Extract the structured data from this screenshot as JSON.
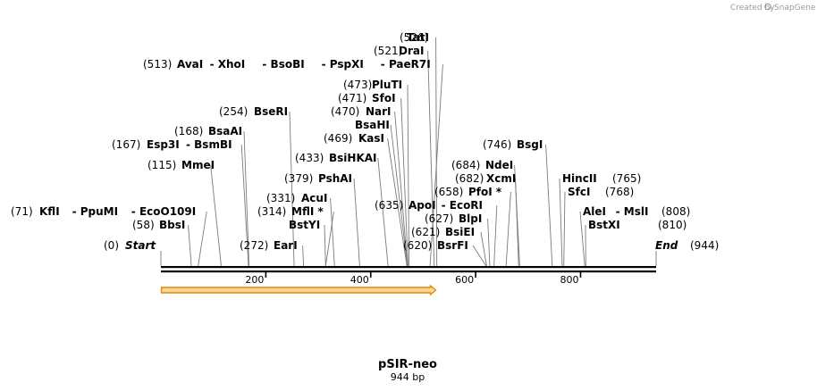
{
  "credit": {
    "text": "Created by",
    "brand": "SnapGene"
  },
  "plasmid": {
    "name": "pSIR-neo",
    "length_label": "944 bp",
    "length": 944
  },
  "axis": {
    "ticks": [
      200,
      400,
      600,
      800
    ]
  },
  "colors": {
    "ruler": "#000000",
    "feature_fill": "#fbd79a",
    "feature_stroke": "#e58a00",
    "leader": "#7a7a7a"
  },
  "feature": {
    "name": "feature-arrow",
    "start": 1,
    "end": 524,
    "direction": "forward"
  },
  "labels": [
    {
      "id": "tati",
      "pos": "(526)",
      "parts": [
        "TatI"
      ],
      "cuts": [
        526
      ]
    },
    {
      "id": "drai",
      "pos": "(521)",
      "parts": [
        "DraI"
      ],
      "cuts": [
        521
      ]
    },
    {
      "id": "avai",
      "pos": "(513)",
      "parts": [
        "AvaI",
        "-  XhoI",
        "-  BsoBI",
        "-  PspXI",
        "-  PaeR7I"
      ],
      "cuts": [
        513
      ]
    },
    {
      "id": "pluti",
      "pos": "(473)",
      "parts": [
        "PluTI"
      ],
      "cuts": [
        473
      ]
    },
    {
      "id": "sfoi",
      "pos": "(471)",
      "parts": [
        "SfoI"
      ],
      "cuts": [
        471
      ]
    },
    {
      "id": "nari",
      "pos": "(470)",
      "parts": [
        "NarI"
      ],
      "cuts": [
        470
      ]
    },
    {
      "id": "bsahi",
      "pos": "",
      "parts": [
        "BsaHI"
      ],
      "cuts": [
        470
      ]
    },
    {
      "id": "kasi",
      "pos": "(469)",
      "parts": [
        "KasI"
      ],
      "cuts": [
        469
      ]
    },
    {
      "id": "bsihkai",
      "pos": "(433)",
      "parts": [
        "BsiHKAI"
      ],
      "cuts": [
        433
      ]
    },
    {
      "id": "pshai",
      "pos": "(379)",
      "parts": [
        "PshAI"
      ],
      "cuts": [
        379
      ]
    },
    {
      "id": "acui",
      "pos": "(331)",
      "parts": [
        "AcuI"
      ],
      "cuts": [
        331
      ]
    },
    {
      "id": "mfli",
      "pos": "(314)",
      "parts": [
        "MflI *"
      ],
      "cuts": [
        314
      ]
    },
    {
      "id": "bstyi",
      "pos": "",
      "parts": [
        "BstYI"
      ],
      "cuts": [
        314
      ]
    },
    {
      "id": "ecori",
      "pos": "(635)",
      "parts": [
        "ApoI",
        "-  EcoRI"
      ],
      "cuts": [
        635
      ]
    },
    {
      "id": "bseri",
      "pos": "(254)",
      "parts": [
        "BseRI"
      ],
      "cuts": [
        254
      ]
    },
    {
      "id": "bsaai",
      "pos": "(168)",
      "parts": [
        "BsaAI"
      ],
      "cuts": [
        168
      ]
    },
    {
      "id": "esp3i",
      "pos": "(167)",
      "parts": [
        "Esp3I",
        "-  BsmBI"
      ],
      "cuts": [
        167
      ]
    },
    {
      "id": "mmei",
      "pos": "(115)",
      "parts": [
        "MmeI"
      ],
      "cuts": [
        115
      ]
    },
    {
      "id": "kfli",
      "pos": "(71)",
      "parts": [
        "KflI",
        "-  PpuMI",
        "-  EcoO109I"
      ],
      "cuts": [
        71
      ]
    },
    {
      "id": "bbsi",
      "pos": "(58)",
      "parts": [
        "BbsI"
      ],
      "cuts": [
        58
      ]
    },
    {
      "id": "start",
      "pos": "(0)",
      "parts": [
        "Start"
      ],
      "cuts": [
        0
      ],
      "italic": true
    },
    {
      "id": "eari",
      "pos": "(272)",
      "parts": [
        "EarI"
      ],
      "cuts": [
        272
      ]
    },
    {
      "id": "bsgi",
      "pos": "(746)",
      "parts": [
        "BsgI"
      ],
      "cuts": [
        746
      ]
    },
    {
      "id": "ndei",
      "pos": "(684)",
      "parts": [
        "NdeI"
      ],
      "cuts": [
        684
      ]
    },
    {
      "id": "xcmi",
      "pos": "(682)",
      "parts": [
        "XcmI"
      ],
      "cuts": [
        682
      ]
    },
    {
      "id": "pfoi",
      "pos": "(658)",
      "parts": [
        "PfoI *"
      ],
      "cuts": [
        658
      ]
    },
    {
      "id": "blpi",
      "pos": "(627)",
      "parts": [
        "BlpI"
      ],
      "cuts": [
        627
      ]
    },
    {
      "id": "bsiei",
      "pos": "(621)",
      "parts": [
        "BsiEI"
      ],
      "cuts": [
        621
      ]
    },
    {
      "id": "bsrfi",
      "pos": "(620)",
      "parts": [
        "BsrFI"
      ],
      "cuts": [
        620
      ]
    },
    {
      "id": "hincii",
      "pos": "(765)",
      "parts": [
        "HincII"
      ],
      "cuts": [
        765
      ]
    },
    {
      "id": "sfci",
      "pos": "(768)",
      "parts": [
        "SfcI"
      ],
      "cuts": [
        768
      ]
    },
    {
      "id": "alei",
      "pos": "(808)",
      "parts": [
        "AleI",
        "-  MslI"
      ],
      "cuts": [
        808
      ]
    },
    {
      "id": "bstxi",
      "pos": "(810)",
      "parts": [
        "BstXI"
      ],
      "cuts": [
        810
      ]
    },
    {
      "id": "end",
      "pos": "(944)",
      "parts": [
        "End"
      ],
      "cuts": [
        944
      ],
      "italic": true
    }
  ]
}
